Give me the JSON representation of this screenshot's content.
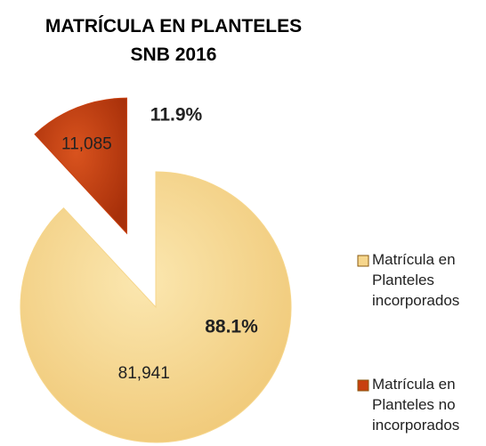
{
  "chart_data": {
    "type": "pie",
    "title": "MATRÍCULA EN PLANTELES SNB 2016",
    "categories": [
      "Matrícula en Planteles incorporados",
      "Matrícula en Planteles no incorporados"
    ],
    "values": [
      81941,
      11085
    ],
    "value_labels": [
      "81,941",
      "11,085"
    ],
    "percent_labels": [
      "88.1%",
      "11.9%"
    ],
    "colors": [
      "#f6d68c",
      "#c8400f"
    ],
    "explode": [
      false,
      true
    ],
    "legend": "right"
  }
}
